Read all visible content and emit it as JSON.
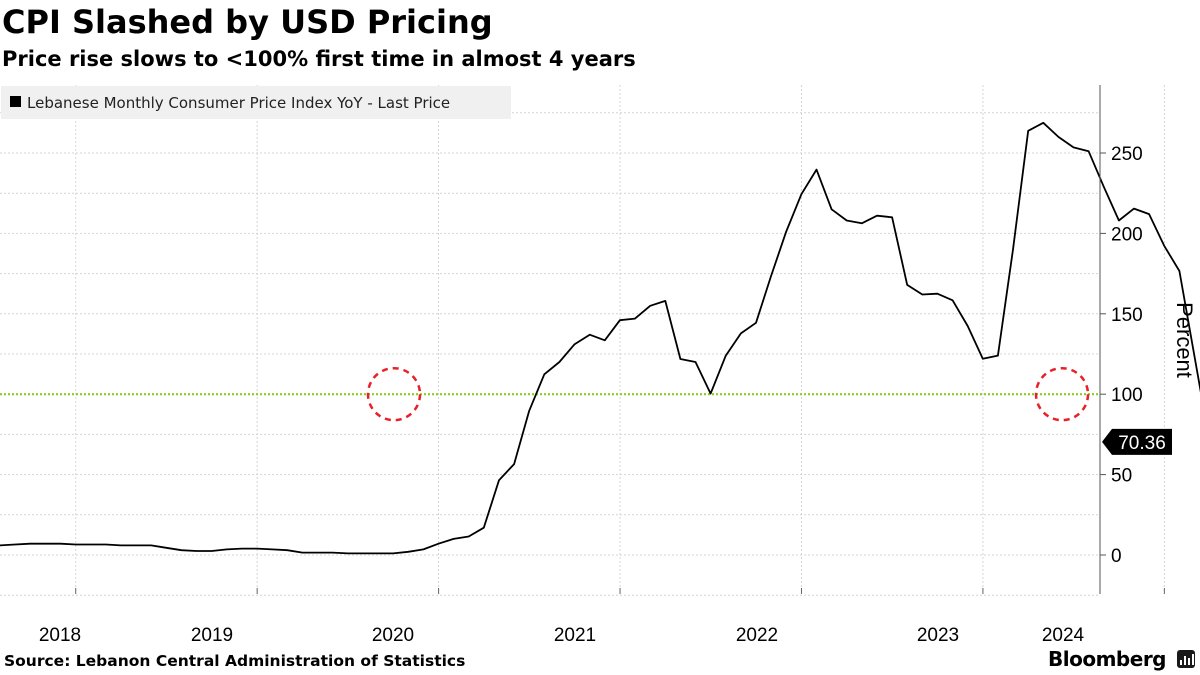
{
  "title": "CPI Slashed by USD Pricing",
  "subtitle": "Price rise slows to <100% first time in almost 4 years",
  "source": "Source: Lebanon Central Administration of Statistics",
  "brand": "Bloomberg",
  "brand_icon": "bar-chart-icon",
  "colors": {
    "line": "#000000",
    "grid": "#d4d4d4",
    "threshold": "#8dcc1f",
    "highlight_circle": "#e8202a",
    "legend_bg": "#f0f0f0",
    "last_value_tag": "#000000"
  },
  "chart_data": {
    "type": "line",
    "title": "CPI Slashed by USD Pricing",
    "ylabel": "Percent",
    "ylim": [
      -25,
      290
    ],
    "yticks": [
      0,
      50,
      100,
      150,
      200,
      250
    ],
    "year_labels": [
      "2018",
      "2019",
      "2020",
      "2021",
      "2022",
      "2023",
      "2024"
    ],
    "grid": true,
    "legend_placement": "top-left",
    "reference_line": {
      "y": 100,
      "style": "dotted"
    },
    "last_value": {
      "label": "70.36",
      "value": 70.36
    },
    "highlights": [
      {
        "date": "2020-02",
        "value": 100,
        "shape": "dashed-circle"
      },
      {
        "date": "2024-02",
        "value": 100,
        "shape": "dashed-circle"
      }
    ],
    "series": [
      {
        "name": "Lebanese Monthly Consumer Price Index YoY - Last Price",
        "points": [
          [
            "2017-07",
            6
          ],
          [
            "2017-08",
            6.5
          ],
          [
            "2017-09",
            7
          ],
          [
            "2017-10",
            7
          ],
          [
            "2017-11",
            7
          ],
          [
            "2017-12",
            6.5
          ],
          [
            "2018-01",
            6.5
          ],
          [
            "2018-02",
            6.5
          ],
          [
            "2018-03",
            6
          ],
          [
            "2018-04",
            6
          ],
          [
            "2018-05",
            6
          ],
          [
            "2018-06",
            4.5
          ],
          [
            "2018-07",
            3
          ],
          [
            "2018-08",
            2.5
          ],
          [
            "2018-09",
            2.5
          ],
          [
            "2018-10",
            3.5
          ],
          [
            "2018-11",
            4
          ],
          [
            "2018-12",
            4
          ],
          [
            "2019-01",
            3.5
          ],
          [
            "2019-02",
            3
          ],
          [
            "2019-03",
            1.5
          ],
          [
            "2019-04",
            1.5
          ],
          [
            "2019-05",
            1.5
          ],
          [
            "2019-06",
            1
          ],
          [
            "2019-07",
            1
          ],
          [
            "2019-08",
            1
          ],
          [
            "2019-09",
            1
          ],
          [
            "2019-10",
            2
          ],
          [
            "2019-11",
            3.5
          ],
          [
            "2019-12",
            7
          ],
          [
            "2020-01",
            10
          ],
          [
            "2020-02",
            11.5
          ],
          [
            "2020-03",
            17
          ],
          [
            "2020-04",
            46.5
          ],
          [
            "2020-05",
            56.5
          ],
          [
            "2020-06",
            89.7
          ],
          [
            "2020-07",
            112.4
          ],
          [
            "2020-08",
            120
          ],
          [
            "2020-09",
            131.1
          ],
          [
            "2020-10",
            137
          ],
          [
            "2020-11",
            133.5
          ],
          [
            "2020-12",
            146
          ],
          [
            "2021-01",
            147
          ],
          [
            "2021-02",
            155
          ],
          [
            "2021-03",
            158
          ],
          [
            "2021-04",
            121.9
          ],
          [
            "2021-05",
            120
          ],
          [
            "2021-06",
            100.4
          ],
          [
            "2021-07",
            124
          ],
          [
            "2021-08",
            137.8
          ],
          [
            "2021-09",
            144.4
          ],
          [
            "2021-10",
            173.6
          ],
          [
            "2021-11",
            201.1
          ],
          [
            "2021-12",
            224.4
          ],
          [
            "2022-01",
            239.7
          ],
          [
            "2022-02",
            215
          ],
          [
            "2022-03",
            208
          ],
          [
            "2022-04",
            206.3
          ],
          [
            "2022-05",
            211
          ],
          [
            "2022-06",
            210
          ],
          [
            "2022-07",
            168
          ],
          [
            "2022-08",
            162
          ],
          [
            "2022-09",
            162.5
          ],
          [
            "2022-10",
            158.4
          ],
          [
            "2022-11",
            142.4
          ],
          [
            "2022-12",
            122
          ],
          [
            "2023-01",
            124
          ],
          [
            "2023-02",
            190
          ],
          [
            "2023-03",
            263.8
          ],
          [
            "2023-04",
            268.8
          ],
          [
            "2023-05",
            260
          ],
          [
            "2023-06",
            253.5
          ],
          [
            "2023-07",
            251.1
          ],
          [
            "2023-08",
            229
          ],
          [
            "2023-09",
            208
          ],
          [
            "2023-10",
            215.4
          ],
          [
            "2023-11",
            212
          ],
          [
            "2023-12",
            192.3
          ],
          [
            "2024-01",
            176.6
          ],
          [
            "2024-02",
            123.5
          ],
          [
            "2024-03",
            70.36
          ]
        ]
      }
    ]
  }
}
